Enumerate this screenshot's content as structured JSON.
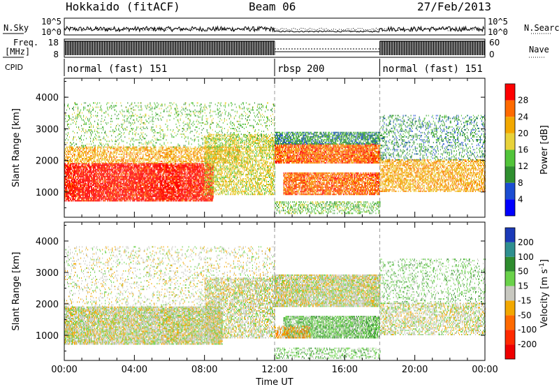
{
  "header": {
    "station": "Hokkaido (fitACF)",
    "beam": "Beam 06",
    "date": "27/Feb/2013"
  },
  "chart_data": [
    {
      "type": "line",
      "panel": "noise",
      "left_label": "N.Sky",
      "right_label": "N.Search",
      "y_ticks_left": [
        "10^5",
        "10^0"
      ],
      "y_ticks_right": [
        "10^5",
        "10^0"
      ],
      "series": [
        {
          "name": "N.Sky",
          "style": "solid"
        },
        {
          "name": "N.Search",
          "style": "dotted"
        }
      ]
    },
    {
      "type": "line",
      "panel": "freq-nave",
      "left_label": "Freq.",
      "left_unit": "[MHz]",
      "right_label": "Nave",
      "left_ticks": [
        18,
        8
      ],
      "right_ticks": [
        60,
        0
      ],
      "segments": [
        {
          "start": 0,
          "end": 12,
          "pattern": "dense"
        },
        {
          "start": 12,
          "end": 18,
          "pattern": "flat"
        },
        {
          "start": 18,
          "end": 24,
          "pattern": "dense"
        }
      ]
    },
    {
      "type": "table",
      "panel": "cpid",
      "label": "CPID",
      "modes": [
        {
          "start": 0,
          "end": 12,
          "label": "normal (fast) 151"
        },
        {
          "start": 12,
          "end": 18,
          "label": "rbsp 200"
        },
        {
          "start": 18,
          "end": 24,
          "label": "normal (fast) 151"
        }
      ]
    },
    {
      "type": "heatmap",
      "panel": "power",
      "xlabel": "",
      "ylabel": "Slant Range [km]",
      "ylim": [
        200,
        4600
      ],
      "y_ticks": [
        1000,
        2000,
        3000,
        4000
      ],
      "xlim": [
        0,
        24
      ],
      "colorbar": {
        "label": "Power [dB]",
        "ticks": [
          "28",
          "24",
          "20",
          "16",
          "12",
          "8",
          "4"
        ],
        "colors": [
          "#ff0000",
          "#ff6a00",
          "#f2a800",
          "#e8d23a",
          "#52c43a",
          "#2f8f2f",
          "#1b4dd2",
          "#0000ff"
        ]
      },
      "regions": [
        {
          "t0": 0.0,
          "t1": 8.5,
          "r0": 700,
          "r1": 1900,
          "level": 7,
          "density": 0.85
        },
        {
          "t0": 0.0,
          "t1": 10.0,
          "r0": 1900,
          "r1": 2400,
          "level": 5,
          "density": 0.55
        },
        {
          "t0": 8.0,
          "t1": 12.0,
          "r0": 900,
          "r1": 2800,
          "level": 4,
          "density": 0.55
        },
        {
          "t0": 0.0,
          "t1": 12.0,
          "r0": 2400,
          "r1": 3800,
          "level": 3,
          "density": 0.15
        },
        {
          "t0": 12.0,
          "t1": 18.0,
          "r0": 1900,
          "r1": 2500,
          "level": 6,
          "density": 0.85
        },
        {
          "t0": 12.0,
          "t1": 18.0,
          "r0": 2500,
          "r1": 2900,
          "level": 2,
          "density": 0.7
        },
        {
          "t0": 12.5,
          "t1": 18.0,
          "r0": 900,
          "r1": 1600,
          "level": 6,
          "density": 0.8
        },
        {
          "t0": 12.0,
          "t1": 18.0,
          "r0": 300,
          "r1": 700,
          "level": 3,
          "density": 0.4
        },
        {
          "t0": 18.0,
          "t1": 24.0,
          "r0": 1000,
          "r1": 2000,
          "level": 5,
          "density": 0.6
        },
        {
          "t0": 18.0,
          "t1": 24.0,
          "r0": 2000,
          "r1": 3400,
          "level": 2,
          "density": 0.25
        }
      ]
    },
    {
      "type": "heatmap",
      "panel": "velocity",
      "xlabel": "Time UT",
      "ylabel": "Slant Range [km]",
      "ylim": [
        200,
        4600
      ],
      "y_ticks": [
        1000,
        2000,
        3000,
        4000
      ],
      "xlim": [
        0,
        24
      ],
      "x_ticks": [
        "00:00",
        "04:00",
        "08:00",
        "12:00",
        "16:00",
        "20:00",
        "00:00"
      ],
      "colorbar": {
        "label": "Velocity [m s^-1]",
        "ticks": [
          "200",
          "100",
          "50",
          "15",
          "-15",
          "-50",
          "-100",
          "-200"
        ],
        "colors": [
          "#1b3ab8",
          "#2f8f8f",
          "#2e8b2e",
          "#6ad24a",
          "#c8c8c0",
          "#f2a800",
          "#ff6a00",
          "#ff2a00",
          "#ee0000"
        ]
      },
      "regions": [
        {
          "t0": 0.0,
          "t1": 9.0,
          "r0": 700,
          "r1": 1900,
          "level": 4,
          "density": 0.85
        },
        {
          "t0": 0.0,
          "t1": 12.0,
          "r0": 1900,
          "r1": 3800,
          "level": 4,
          "density": 0.15
        },
        {
          "t0": 8.0,
          "t1": 12.0,
          "r0": 900,
          "r1": 2800,
          "level": 4,
          "density": 0.55
        },
        {
          "t0": 12.0,
          "t1": 18.0,
          "r0": 1900,
          "r1": 2900,
          "level": 4,
          "density": 0.85
        },
        {
          "t0": 12.5,
          "t1": 18.0,
          "r0": 900,
          "r1": 1600,
          "level": 3,
          "density": 0.8
        },
        {
          "t0": 12.0,
          "t1": 14.0,
          "r0": 900,
          "r1": 1300,
          "level": 5,
          "density": 0.6
        },
        {
          "t0": 12.0,
          "t1": 18.0,
          "r0": 250,
          "r1": 600,
          "level": 3,
          "density": 0.35
        },
        {
          "t0": 18.0,
          "t1": 24.0,
          "r0": 1000,
          "r1": 2000,
          "level": 4,
          "density": 0.5
        },
        {
          "t0": 18.0,
          "t1": 24.0,
          "r0": 2000,
          "r1": 3400,
          "level": 3,
          "density": 0.2
        }
      ]
    }
  ]
}
